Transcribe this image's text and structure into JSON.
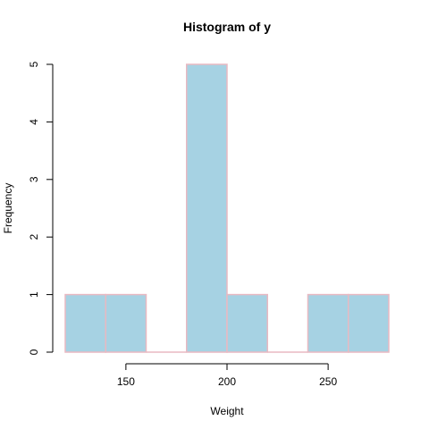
{
  "chart_data": {
    "type": "bar",
    "title": "Histogram of y",
    "xlabel": "Weight",
    "ylabel": "Frequency",
    "bins": [
      {
        "start": 120,
        "end": 140,
        "count": 1
      },
      {
        "start": 140,
        "end": 160,
        "count": 1
      },
      {
        "start": 160,
        "end": 180,
        "count": 0
      },
      {
        "start": 180,
        "end": 200,
        "count": 5
      },
      {
        "start": 200,
        "end": 220,
        "count": 1
      },
      {
        "start": 220,
        "end": 240,
        "count": 0
      },
      {
        "start": 240,
        "end": 260,
        "count": 1
      },
      {
        "start": 260,
        "end": 280,
        "count": 1
      }
    ],
    "xlim": [
      120,
      280
    ],
    "ylim": [
      0,
      5
    ],
    "x_ticks": [
      150,
      200,
      250
    ],
    "y_ticks": [
      0,
      1,
      2,
      3,
      4,
      5
    ],
    "bar_fill": "#a6d2e3",
    "bar_border": "#e8b9c2",
    "grid": false,
    "legend": "none"
  }
}
